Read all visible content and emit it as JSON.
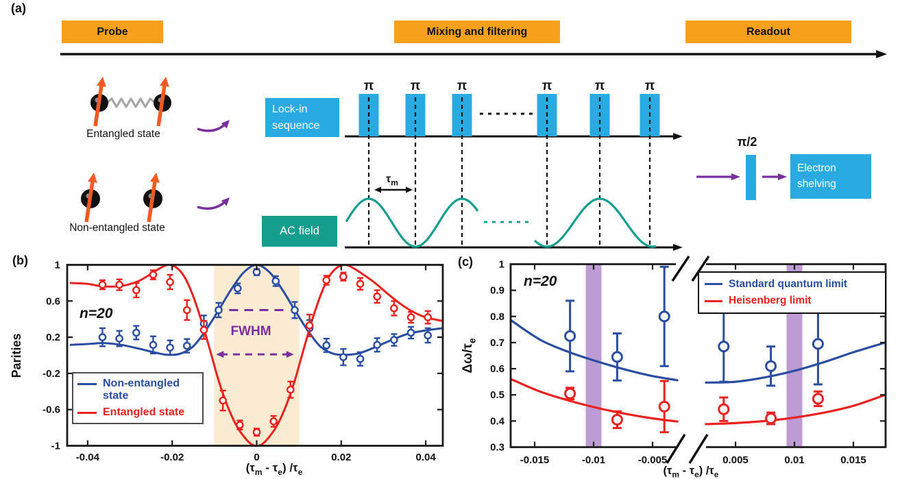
{
  "panels": {
    "a_label": "(a)",
    "b_label": "(b)",
    "c_label": "(c)"
  },
  "colors": {
    "orange": "#F7A01B",
    "blue_box": "#29ABE2",
    "teal": "#159E8E",
    "purple": "#7A2F9E",
    "band": "#BD9CD3",
    "plot_blue": "#2A4DA0",
    "plot_red": "#E9221F",
    "shade": "#FBEBD2",
    "spin_orange": "#F15A24",
    "spring_gray": "#A6A6A6",
    "black": "#111111"
  },
  "panel_a": {
    "stages": [
      "Probe",
      "Mixing and filtering",
      "Readout"
    ],
    "lockin_label": "Lock-in sequence",
    "ac_label": "AC field",
    "shelving_label": "Electron shelving",
    "entangled_label": "Entangled state",
    "non_entangled_label": "Non-entangled state",
    "pi": "π",
    "pi_half": "π/2",
    "tau_m": [
      [
        "τ",
        0
      ],
      [
        "m",
        1
      ]
    ],
    "pulse_count": 6
  },
  "chart_data": [
    {
      "id": "parities",
      "type": "line",
      "title": "",
      "ylabel": "Parities",
      "xlabel_rich": [
        [
          "(τ",
          0
        ],
        [
          "m",
          1
        ],
        [
          " - τ",
          0
        ],
        [
          "e",
          1
        ],
        [
          ") /τ",
          0
        ],
        [
          "e",
          1
        ]
      ],
      "annotation": "n=20",
      "xlim": [
        -0.0449,
        0.0441
      ],
      "ylim": [
        -1,
        1
      ],
      "xticks": {
        "values": [
          -0.04,
          -0.02,
          0,
          0.02,
          0.04
        ],
        "labels": [
          "-0.04",
          "-0.02",
          "0",
          "0.02",
          "0.04"
        ]
      },
      "yticks": {
        "values": [
          1,
          0.6,
          0.2,
          -0.2,
          -0.6,
          -1
        ],
        "labels": [
          "1",
          "0.6",
          "0.2",
          "-0.2",
          "-0.6",
          "-1"
        ]
      },
      "grid": false,
      "legend_position": "lower-left",
      "fwhm": {
        "label": "FWHM",
        "region": [
          -0.0101,
          0.0101
        ],
        "line_y": 0.5,
        "line_x": [
          -0.0065,
          0.0075
        ],
        "arrow_y": 0.01,
        "arrow_x": [
          -0.0096,
          0.0088
        ]
      },
      "legend": [
        {
          "label": "Non-entangled state",
          "color": "#2A4DA0"
        },
        {
          "label": "Entangled state",
          "color": "#E9221F"
        }
      ],
      "series": [
        {
          "name": "non_entangled_fit",
          "kind": "curve",
          "color": "#2A4DA0",
          "points": [
            [
              -0.044,
              0.115
            ],
            [
              -0.04,
              0.125
            ],
            [
              -0.036,
              0.135
            ],
            [
              -0.032,
              0.115
            ],
            [
              -0.028,
              0.075
            ],
            [
              -0.024,
              0.03
            ],
            [
              -0.021,
              0.005
            ],
            [
              -0.018,
              0.02
            ],
            [
              -0.015,
              0.1
            ],
            [
              -0.012,
              0.28
            ],
            [
              -0.009,
              0.5
            ],
            [
              -0.006,
              0.73
            ],
            [
              -0.003,
              0.92
            ],
            [
              0,
              1.0
            ],
            [
              0.003,
              0.92
            ],
            [
              0.006,
              0.73
            ],
            [
              0.009,
              0.5
            ],
            [
              0.012,
              0.28
            ],
            [
              0.015,
              0.1
            ],
            [
              0.018,
              0.02
            ],
            [
              0.021,
              0.005
            ],
            [
              0.024,
              0.02
            ],
            [
              0.027,
              0.07
            ],
            [
              0.03,
              0.13
            ],
            [
              0.033,
              0.19
            ],
            [
              0.036,
              0.24
            ],
            [
              0.04,
              0.275
            ],
            [
              0.044,
              0.3
            ]
          ]
        },
        {
          "name": "entangled_fit",
          "kind": "curve",
          "color": "#E9221F",
          "points": [
            [
              -0.044,
              0.8
            ],
            [
              -0.04,
              0.79
            ],
            [
              -0.037,
              0.765
            ],
            [
              -0.034,
              0.76
            ],
            [
              -0.031,
              0.775
            ],
            [
              -0.028,
              0.82
            ],
            [
              -0.025,
              0.9
            ],
            [
              -0.023,
              0.96
            ],
            [
              -0.021,
              1.0
            ],
            [
              -0.019,
              0.97
            ],
            [
              -0.017,
              0.86
            ],
            [
              -0.015,
              0.65
            ],
            [
              -0.013,
              0.37
            ],
            [
              -0.011,
              0.05
            ],
            [
              -0.009,
              -0.28
            ],
            [
              -0.007,
              -0.55
            ],
            [
              -0.005,
              -0.76
            ],
            [
              -0.003,
              -0.9
            ],
            [
              -0.001,
              -0.99
            ],
            [
              0.001,
              -0.99
            ],
            [
              0.003,
              -0.9
            ],
            [
              0.005,
              -0.76
            ],
            [
              0.007,
              -0.55
            ],
            [
              0.009,
              -0.28
            ],
            [
              0.011,
              0.05
            ],
            [
              0.013,
              0.37
            ],
            [
              0.015,
              0.65
            ],
            [
              0.017,
              0.86
            ],
            [
              0.019,
              0.97
            ],
            [
              0.021,
              1.0
            ],
            [
              0.023,
              0.96
            ],
            [
              0.025,
              0.9
            ],
            [
              0.028,
              0.8
            ],
            [
              0.031,
              0.68
            ],
            [
              0.034,
              0.57
            ],
            [
              0.037,
              0.48
            ],
            [
              0.04,
              0.42
            ],
            [
              0.044,
              0.38
            ]
          ]
        },
        {
          "name": "non_entangled_data",
          "kind": "errorbar",
          "color": "#2A4DA0",
          "points": [
            [
              -0.0365,
              0.2,
              0.1
            ],
            [
              -0.0325,
              0.185,
              0.085
            ],
            [
              -0.0285,
              0.25,
              0.075
            ],
            [
              -0.0245,
              0.115,
              0.095
            ],
            [
              -0.0205,
              0.085,
              0.08
            ],
            [
              -0.0165,
              0.105,
              0.075
            ],
            [
              -0.0125,
              0.35,
              0.09
            ],
            [
              -0.009,
              0.5,
              0.08
            ],
            [
              -0.0045,
              0.74,
              0.055
            ],
            [
              0,
              0.92,
              0.035
            ],
            [
              0.0045,
              0.82,
              0.055
            ],
            [
              0.009,
              0.5,
              0.09
            ],
            [
              0.0125,
              0.3,
              0.09
            ],
            [
              0.0165,
              0.11,
              0.075
            ],
            [
              0.0205,
              -0.02,
              0.09
            ],
            [
              0.0245,
              -0.04,
              0.075
            ],
            [
              0.0285,
              0.115,
              0.075
            ],
            [
              0.0325,
              0.17,
              0.065
            ],
            [
              0.0365,
              0.25,
              0.065
            ],
            [
              0.0405,
              0.22,
              0.08
            ]
          ]
        },
        {
          "name": "entangled_data",
          "kind": "errorbar",
          "color": "#E9221F",
          "points": [
            [
              -0.0365,
              0.78,
              0.05
            ],
            [
              -0.0325,
              0.78,
              0.06
            ],
            [
              -0.0285,
              0.72,
              0.08
            ],
            [
              -0.0245,
              0.89,
              0.05
            ],
            [
              -0.0205,
              0.81,
              0.08
            ],
            [
              -0.0165,
              0.5,
              0.11
            ],
            [
              -0.0125,
              0.28,
              0.1
            ],
            [
              -0.008,
              -0.5,
              0.11
            ],
            [
              -0.004,
              -0.77,
              0.05
            ],
            [
              0,
              -0.85,
              0.04
            ],
            [
              0.004,
              -0.73,
              0.06
            ],
            [
              0.008,
              -0.38,
              0.09
            ],
            [
              0.0125,
              0.33,
              0.12
            ],
            [
              0.0165,
              0.83,
              0.05
            ],
            [
              0.0205,
              0.87,
              0.045
            ],
            [
              0.0245,
              0.79,
              0.065
            ],
            [
              0.0285,
              0.65,
              0.07
            ],
            [
              0.0325,
              0.52,
              0.08
            ],
            [
              0.0365,
              0.42,
              0.06
            ],
            [
              0.0405,
              0.42,
              0.07
            ]
          ]
        }
      ]
    },
    {
      "id": "frequency_uncertainty",
      "type": "scatter",
      "title": "",
      "ylabel_rich": [
        [
          "Δω/τ",
          0
        ],
        [
          "e",
          1
        ]
      ],
      "xlabel_rich": [
        [
          "(τ",
          0
        ],
        [
          "m",
          1
        ],
        [
          " - τ",
          0
        ],
        [
          "e",
          1
        ],
        [
          ") /τ",
          0
        ],
        [
          "e",
          1
        ]
      ],
      "annotation": "n=20",
      "xlim_left": [
        -0.017,
        -0.0029
      ],
      "xlim_right": [
        0.0025,
        0.0177
      ],
      "ylim": [
        0.3,
        1
      ],
      "axis_break_at_x": 0,
      "xticks": {
        "values": [
          -0.015,
          -0.01,
          -0.005,
          0.005,
          0.01,
          0.015
        ],
        "labels": [
          "-0.015",
          "-0.01",
          "-0.005",
          "0.005",
          "0.01",
          "0.015"
        ]
      },
      "yticks": {
        "values": [
          1,
          0.9,
          0.8,
          0.7,
          0.6,
          0.5,
          0.4,
          0.3
        ],
        "labels": [
          "1",
          "0.9",
          "0.8",
          "0.7",
          "0.6",
          "0.5",
          "0.4",
          "0.3"
        ]
      },
      "grid": false,
      "legend_position": "upper-right",
      "bands": [
        -0.01,
        0.01
      ],
      "legend": [
        {
          "label": "Standard quantum limit",
          "color": "#2A4DA0"
        },
        {
          "label": "Heisenberg limit",
          "color": "#E9221F"
        }
      ],
      "series": [
        {
          "name": "sql_fit_left",
          "kind": "curve",
          "color": "#2A4DA0",
          "points": [
            [
              -0.017,
              0.785
            ],
            [
              -0.0145,
              0.71
            ],
            [
              -0.012,
              0.662
            ],
            [
              -0.0095,
              0.625
            ],
            [
              -0.007,
              0.593
            ],
            [
              -0.005,
              0.572
            ],
            [
              -0.0029,
              0.556
            ]
          ]
        },
        {
          "name": "sql_fit_right",
          "kind": "curve",
          "color": "#2A4DA0",
          "points": [
            [
              0.0025,
              0.547
            ],
            [
              0.005,
              0.55
            ],
            [
              0.0075,
              0.567
            ],
            [
              0.01,
              0.592
            ],
            [
              0.0125,
              0.625
            ],
            [
              0.015,
              0.663
            ],
            [
              0.0177,
              0.7
            ]
          ]
        },
        {
          "name": "heisenberg_fit_left",
          "kind": "curve",
          "color": "#E9221F",
          "points": [
            [
              -0.017,
              0.56
            ],
            [
              -0.0145,
              0.512
            ],
            [
              -0.012,
              0.477
            ],
            [
              -0.0095,
              0.448
            ],
            [
              -0.007,
              0.425
            ],
            [
              -0.005,
              0.41
            ],
            [
              -0.0029,
              0.398
            ]
          ]
        },
        {
          "name": "heisenberg_fit_right",
          "kind": "curve",
          "color": "#E9221F",
          "points": [
            [
              0.0025,
              0.388
            ],
            [
              0.005,
              0.392
            ],
            [
              0.0075,
              0.4
            ],
            [
              0.01,
              0.413
            ],
            [
              0.0125,
              0.432
            ],
            [
              0.015,
              0.458
            ],
            [
              0.0177,
              0.5
            ]
          ]
        },
        {
          "name": "sql_data",
          "kind": "errorbar",
          "color": "#2A4DA0",
          "points": [
            [
              -0.012,
              0.725,
              0.135
            ],
            [
              -0.008,
              0.645,
              0.09
            ],
            [
              -0.004,
              0.8,
              0.19
            ],
            [
              0.004,
              0.685,
              0.135
            ],
            [
              0.008,
              0.61,
              0.075
            ],
            [
              0.012,
              0.695,
              0.155
            ]
          ]
        },
        {
          "name": "heisenberg_data",
          "kind": "errorbar",
          "color": "#E9221F",
          "points": [
            [
              -0.012,
              0.505,
              0.022
            ],
            [
              -0.008,
              0.405,
              0.032
            ],
            [
              -0.004,
              0.455,
              0.098
            ],
            [
              0.004,
              0.445,
              0.045
            ],
            [
              0.008,
              0.41,
              0.022
            ],
            [
              0.012,
              0.485,
              0.028
            ]
          ]
        }
      ]
    }
  ]
}
